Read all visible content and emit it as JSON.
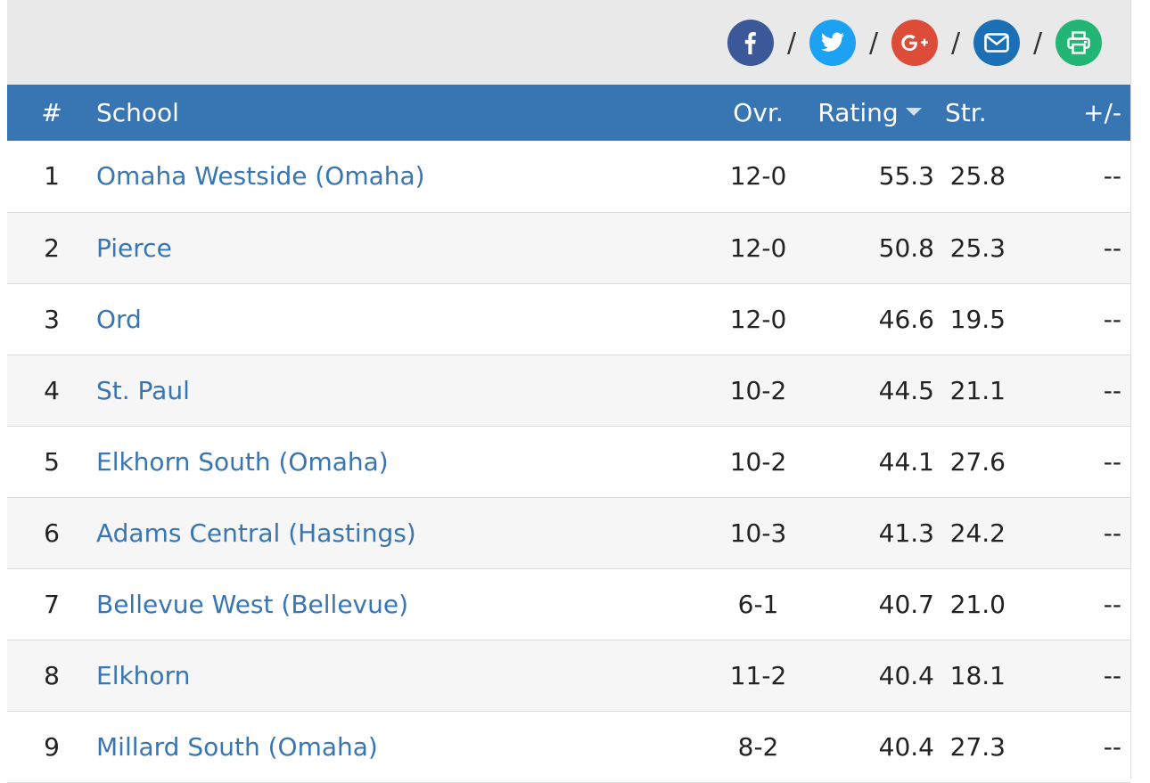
{
  "share": {
    "buttons": [
      {
        "name": "facebook",
        "icon": "facebook-icon",
        "color": "#3b5998"
      },
      {
        "name": "twitter",
        "icon": "twitter-icon",
        "color": "#1da1f2"
      },
      {
        "name": "google-plus",
        "icon": "google-plus-icon",
        "color": "#dd4b39"
      },
      {
        "name": "email",
        "icon": "envelope-icon",
        "color": "#1a6fb5"
      },
      {
        "name": "print",
        "icon": "printer-icon",
        "color": "#22b573"
      }
    ],
    "separator": "/"
  },
  "table": {
    "header_color": "#3875b3",
    "link_color": "#3875b3",
    "columns": {
      "rank": "#",
      "school": "School",
      "ovr": "Ovr.",
      "rating": "Rating",
      "str": "Str.",
      "change": "+/-"
    },
    "sorted_by": "Rating",
    "rows": [
      {
        "rank": "1",
        "school": "Omaha Westside (Omaha)",
        "ovr": "12-0",
        "rating": "55.3",
        "str": "25.8",
        "change": "--"
      },
      {
        "rank": "2",
        "school": "Pierce",
        "ovr": "12-0",
        "rating": "50.8",
        "str": "25.3",
        "change": "--"
      },
      {
        "rank": "3",
        "school": "Ord",
        "ovr": "12-0",
        "rating": "46.6",
        "str": "19.5",
        "change": "--"
      },
      {
        "rank": "4",
        "school": "St. Paul",
        "ovr": "10-2",
        "rating": "44.5",
        "str": "21.1",
        "change": "--"
      },
      {
        "rank": "5",
        "school": "Elkhorn South (Omaha)",
        "ovr": "10-2",
        "rating": "44.1",
        "str": "27.6",
        "change": "--"
      },
      {
        "rank": "6",
        "school": "Adams Central (Hastings)",
        "ovr": "10-3",
        "rating": "41.3",
        "str": "24.2",
        "change": "--"
      },
      {
        "rank": "7",
        "school": "Bellevue West (Bellevue)",
        "ovr": "6-1",
        "rating": "40.7",
        "str": "21.0",
        "change": "--"
      },
      {
        "rank": "8",
        "school": "Elkhorn",
        "ovr": "11-2",
        "rating": "40.4",
        "str": "18.1",
        "change": "--"
      },
      {
        "rank": "9",
        "school": "Millard South (Omaha)",
        "ovr": "8-2",
        "rating": "40.4",
        "str": "27.3",
        "change": "--"
      }
    ]
  }
}
